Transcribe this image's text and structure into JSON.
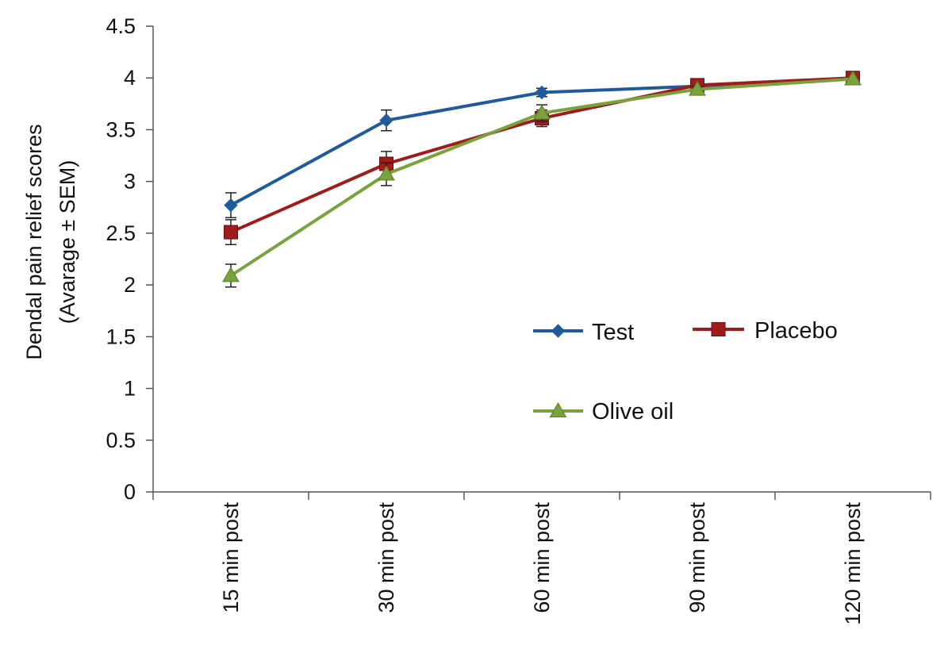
{
  "chart_data": {
    "type": "line",
    "title": "",
    "ylabel": "Dendal pain relief scores",
    "ylabel_sub": "(Avarage ± SEM)",
    "xlabel": "",
    "categories": [
      "15 min post",
      "30 min post",
      "60 min post",
      "90 min post",
      "120 min post"
    ],
    "ylim": [
      0,
      4.5
    ],
    "yticks": [
      "0",
      "0.5",
      "1",
      "1.5",
      "2",
      "2.5",
      "3",
      "3.5",
      "4",
      "4.5"
    ],
    "grid": false,
    "legend_position": "center-right",
    "error_bars": true,
    "series": [
      {
        "name": "Test",
        "color": "#1f5a9c",
        "marker": "diamond",
        "values": [
          2.77,
          3.59,
          3.86,
          3.92,
          4.0
        ],
        "errors": [
          0.12,
          0.1,
          0.04,
          0.02,
          0.0
        ]
      },
      {
        "name": "Placebo",
        "color": "#a01c1c",
        "marker": "square",
        "values": [
          2.51,
          3.17,
          3.61,
          3.93,
          4.0
        ],
        "errors": [
          0.12,
          0.12,
          0.08,
          0.03,
          0.0
        ]
      },
      {
        "name": "Olive oil",
        "color": "#7aa23c",
        "marker": "triangle",
        "values": [
          2.09,
          3.07,
          3.66,
          3.89,
          3.99
        ],
        "errors": [
          0.11,
          0.11,
          0.08,
          0.03,
          0.0
        ]
      }
    ]
  }
}
